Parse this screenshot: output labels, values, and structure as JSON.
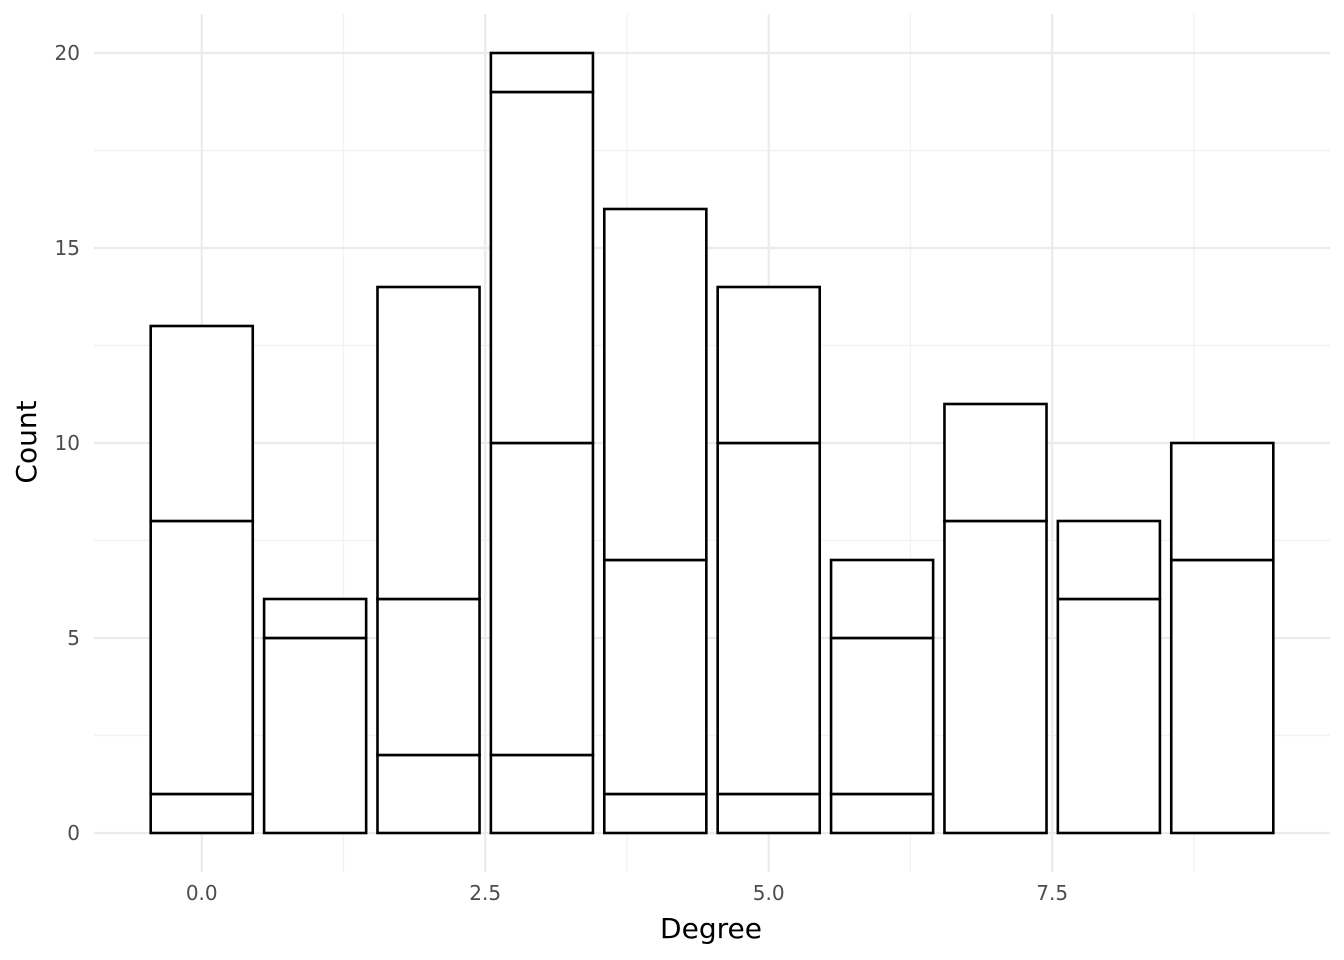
{
  "chart_data": {
    "type": "bar",
    "stacked": true,
    "x": [
      0,
      1,
      2,
      3,
      4,
      5,
      6,
      7,
      8,
      9
    ],
    "segments": [
      [
        1,
        7,
        5
      ],
      [
        5,
        1
      ],
      [
        2,
        4,
        8
      ],
      [
        2,
        8,
        9,
        1
      ],
      [
        1,
        6,
        9
      ],
      [
        1,
        9,
        4
      ],
      [
        1,
        4,
        2
      ],
      [
        8,
        3
      ],
      [
        6,
        2
      ],
      [
        7,
        3
      ]
    ],
    "totals": [
      13,
      6,
      14,
      20,
      16,
      14,
      7,
      11,
      8,
      10
    ],
    "xlabel": "Degree",
    "ylabel": "Count",
    "xticks": [
      0.0,
      2.5,
      5.0,
      7.5
    ],
    "xtick_labels": [
      "0.0",
      "2.5",
      "5.0",
      "7.5"
    ],
    "yticks": [
      0,
      5,
      10,
      15,
      20
    ],
    "ytick_labels": [
      "0",
      "5",
      "10",
      "15",
      "20"
    ],
    "xlim": [
      -0.95,
      9.95
    ],
    "ylim": [
      -1,
      21
    ],
    "grid": true,
    "bar_fill": "#ffffff",
    "bar_stroke": "#000000"
  }
}
